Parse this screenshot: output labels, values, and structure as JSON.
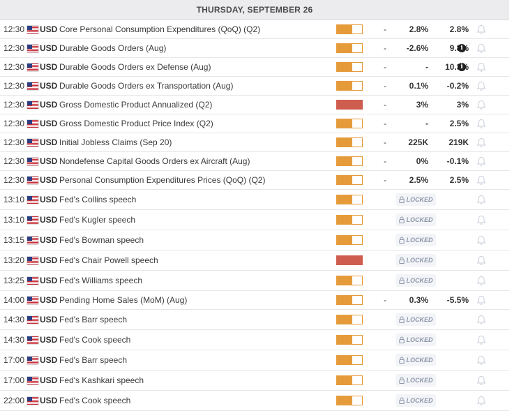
{
  "day_header": "THURSDAY, SEPTEMBER 26",
  "locked_label": "LOCKED",
  "colors": {
    "impact_medium": "#e59b3a",
    "impact_high": "#cf5d4f",
    "header_bg": "#ececef"
  },
  "icons": {
    "bell": "bell-icon",
    "info": "info-icon",
    "lock": "lock-icon",
    "flag": "us-flag-icon"
  },
  "events": [
    {
      "time": "12:30",
      "currency": "USD",
      "name": "Core Personal Consumption Expenditures (QoQ) (Q2)",
      "impact": "medium",
      "actual": "-",
      "consensus": "2.8%",
      "previous": "2.8%",
      "info": false,
      "locked": false
    },
    {
      "time": "12:30",
      "currency": "USD",
      "name": "Durable Goods Orders (Aug)",
      "impact": "medium",
      "actual": "-",
      "consensus": "-2.6%",
      "previous": "9.8%",
      "info": true,
      "locked": false
    },
    {
      "time": "12:30",
      "currency": "USD",
      "name": "Durable Goods Orders ex Defense (Aug)",
      "impact": "medium",
      "actual": "-",
      "consensus": "-",
      "previous": "10.3%",
      "info": true,
      "locked": false
    },
    {
      "time": "12:30",
      "currency": "USD",
      "name": "Durable Goods Orders ex Transportation (Aug)",
      "impact": "medium",
      "actual": "-",
      "consensus": "0.1%",
      "previous": "-0.2%",
      "info": false,
      "locked": false
    },
    {
      "time": "12:30",
      "currency": "USD",
      "name": "Gross Domestic Product Annualized (Q2)",
      "impact": "high",
      "actual": "-",
      "consensus": "3%",
      "previous": "3%",
      "info": false,
      "locked": false
    },
    {
      "time": "12:30",
      "currency": "USD",
      "name": "Gross Domestic Product Price Index (Q2)",
      "impact": "medium",
      "actual": "-",
      "consensus": "-",
      "previous": "2.5%",
      "info": false,
      "locked": false
    },
    {
      "time": "12:30",
      "currency": "USD",
      "name": "Initial Jobless Claims (Sep 20)",
      "impact": "medium",
      "actual": "-",
      "consensus": "225K",
      "previous": "219K",
      "info": false,
      "locked": false
    },
    {
      "time": "12:30",
      "currency": "USD",
      "name": "Nondefense Capital Goods Orders ex Aircraft (Aug)",
      "impact": "medium",
      "actual": "-",
      "consensus": "0%",
      "previous": "-0.1%",
      "info": false,
      "locked": false
    },
    {
      "time": "12:30",
      "currency": "USD",
      "name": "Personal Consumption Expenditures Prices (QoQ) (Q2)",
      "impact": "medium",
      "actual": "-",
      "consensus": "2.5%",
      "previous": "2.5%",
      "info": false,
      "locked": false
    },
    {
      "time": "13:10",
      "currency": "USD",
      "name": "Fed's Collins speech",
      "impact": "medium",
      "locked": true
    },
    {
      "time": "13:10",
      "currency": "USD",
      "name": "Fed's Kugler speech",
      "impact": "medium",
      "locked": true
    },
    {
      "time": "13:15",
      "currency": "USD",
      "name": "Fed's Bowman speech",
      "impact": "medium",
      "locked": true
    },
    {
      "time": "13:20",
      "currency": "USD",
      "name": "Fed's Chair Powell speech",
      "impact": "high",
      "locked": true
    },
    {
      "time": "13:25",
      "currency": "USD",
      "name": "Fed's Williams speech",
      "impact": "medium",
      "locked": true
    },
    {
      "time": "14:00",
      "currency": "USD",
      "name": "Pending Home Sales (MoM) (Aug)",
      "impact": "medium",
      "actual": "-",
      "consensus": "0.3%",
      "previous": "-5.5%",
      "info": false,
      "locked": false
    },
    {
      "time": "14:30",
      "currency": "USD",
      "name": "Fed's Barr speech",
      "impact": "medium",
      "locked": true
    },
    {
      "time": "14:30",
      "currency": "USD",
      "name": "Fed's Cook speech",
      "impact": "medium",
      "locked": true
    },
    {
      "time": "17:00",
      "currency": "USD",
      "name": "Fed's Barr speech",
      "impact": "medium",
      "locked": true
    },
    {
      "time": "17:00",
      "currency": "USD",
      "name": "Fed's Kashkari speech",
      "impact": "medium",
      "locked": true
    },
    {
      "time": "22:00",
      "currency": "USD",
      "name": "Fed's Cook speech",
      "impact": "medium",
      "locked": true
    }
  ]
}
